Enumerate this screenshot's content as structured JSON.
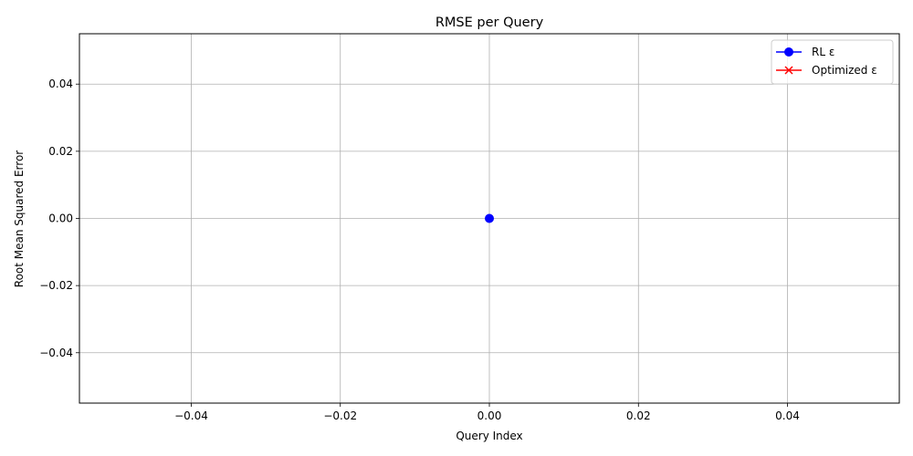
{
  "chart_data": {
    "type": "line",
    "title": "RMSE per Query",
    "xlabel": "Query Index",
    "ylabel": "Root Mean Squared Error",
    "xlim": [
      -0.055,
      0.055
    ],
    "ylim": [
      -0.055,
      0.055
    ],
    "xticks": [
      -0.04,
      -0.02,
      0.0,
      0.02,
      0.04
    ],
    "yticks": [
      -0.04,
      -0.02,
      0.0,
      0.02,
      0.04
    ],
    "xtick_labels": [
      "−0.04",
      "−0.02",
      "0.00",
      "0.02",
      "0.04"
    ],
    "ytick_labels": [
      "−0.04",
      "−0.02",
      "0.00",
      "0.02",
      "0.04"
    ],
    "grid": true,
    "legend_position": "top-right",
    "series": [
      {
        "name": "RL ε",
        "color": "#0000ff",
        "marker": "circle",
        "x": [
          0
        ],
        "y": [
          0
        ]
      },
      {
        "name": "Optimized ε",
        "color": "#ff0000",
        "marker": "x",
        "x": [],
        "y": []
      }
    ]
  }
}
